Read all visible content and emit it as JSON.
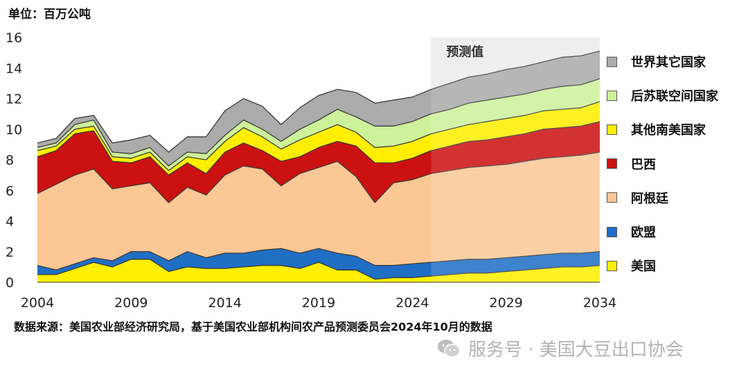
{
  "unit_label": "单位：百万公吨",
  "source_text": "数据来源：美国农业部经济研究局，基于美国农业部机构间农产品预测委员会2024年10月的数据",
  "watermark_text": "服务号 · 美国大豆出口协会",
  "forecast_label": "预测值",
  "chart_data": {
    "type": "area",
    "stacked": true,
    "title": "",
    "xlabel": "",
    "ylabel": "单位：百万公吨",
    "ylim": [
      0,
      16
    ],
    "xlim": [
      2004,
      2034
    ],
    "yticks": [
      0,
      2,
      4,
      6,
      8,
      10,
      12,
      14,
      16
    ],
    "xticks": [
      2004,
      2009,
      2014,
      2019,
      2024,
      2029,
      2034
    ],
    "forecast_start": 2025,
    "x": [
      2004,
      2005,
      2006,
      2007,
      2008,
      2009,
      2010,
      2011,
      2012,
      2013,
      2014,
      2015,
      2016,
      2017,
      2018,
      2019,
      2020,
      2021,
      2022,
      2023,
      2024,
      2025,
      2026,
      2027,
      2028,
      2029,
      2030,
      2031,
      2032,
      2033,
      2034
    ],
    "series": [
      {
        "name": "美国",
        "color": "#ffef00",
        "values": [
          0.5,
          0.5,
          0.9,
          1.3,
          1.0,
          1.5,
          1.5,
          0.7,
          1.0,
          0.9,
          0.9,
          1.0,
          1.1,
          1.1,
          0.9,
          1.3,
          0.8,
          0.8,
          0.2,
          0.3,
          0.3,
          0.4,
          0.5,
          0.6,
          0.6,
          0.7,
          0.8,
          0.9,
          1.0,
          1.0,
          1.1
        ]
      },
      {
        "name": "欧盟",
        "color": "#1f6fc5",
        "values": [
          0.6,
          0.3,
          0.3,
          0.3,
          0.4,
          0.5,
          0.5,
          0.7,
          1.0,
          0.7,
          1.0,
          0.9,
          1.0,
          1.1,
          1.0,
          0.9,
          1.1,
          0.9,
          0.9,
          0.8,
          0.9,
          0.9,
          0.9,
          0.9,
          0.9,
          0.9,
          0.9,
          0.9,
          0.9,
          0.9,
          0.9
        ]
      },
      {
        "name": "阿根廷",
        "color": "#fbc795",
        "values": [
          4.7,
          5.6,
          5.8,
          5.8,
          4.7,
          4.3,
          4.5,
          3.8,
          4.2,
          4.1,
          5.1,
          5.7,
          5.3,
          4.1,
          5.2,
          5.3,
          6.0,
          5.2,
          4.1,
          5.4,
          5.5,
          5.8,
          5.9,
          6.0,
          6.1,
          6.1,
          6.2,
          6.3,
          6.3,
          6.4,
          6.5
        ]
      },
      {
        "name": "巴西",
        "color": "#cc1111",
        "values": [
          2.4,
          2.2,
          2.7,
          2.5,
          1.8,
          1.5,
          1.7,
          1.8,
          1.6,
          1.4,
          1.5,
          1.5,
          1.2,
          1.6,
          1.1,
          1.3,
          1.3,
          2.0,
          2.6,
          1.3,
          1.4,
          1.5,
          1.6,
          1.7,
          1.7,
          1.8,
          1.8,
          1.9,
          1.9,
          1.9,
          2.0
        ]
      },
      {
        "name": "其他南美国家",
        "color": "#ffee00",
        "values": [
          0.4,
          0.3,
          0.3,
          0.3,
          0.3,
          0.3,
          0.3,
          0.3,
          0.4,
          0.9,
          0.7,
          1.0,
          0.9,
          0.8,
          1.1,
          1.0,
          1.1,
          0.9,
          1.0,
          1.1,
          1.1,
          1.1,
          1.1,
          1.1,
          1.2,
          1.2,
          1.2,
          1.2,
          1.2,
          1.2,
          1.3
        ]
      },
      {
        "name": "后苏联空间国家",
        "color": "#ccf29a",
        "values": [
          0.2,
          0.2,
          0.3,
          0.4,
          0.3,
          0.3,
          0.3,
          0.3,
          0.3,
          0.4,
          0.4,
          0.5,
          0.5,
          0.5,
          0.7,
          0.8,
          1.0,
          1.0,
          1.4,
          1.3,
          1.3,
          1.3,
          1.3,
          1.4,
          1.4,
          1.4,
          1.4,
          1.4,
          1.5,
          1.5,
          1.5
        ]
      },
      {
        "name": "世界其它国家",
        "color": "#ababab",
        "values": [
          0.3,
          0.3,
          0.4,
          0.3,
          0.6,
          0.9,
          0.8,
          0.9,
          1.0,
          1.1,
          1.6,
          1.4,
          1.5,
          1.1,
          1.4,
          1.6,
          1.3,
          1.6,
          1.5,
          1.7,
          1.6,
          1.6,
          1.7,
          1.7,
          1.7,
          1.8,
          1.8,
          1.8,
          1.9,
          1.9,
          1.8
        ]
      }
    ],
    "legend_order": [
      "世界其它国家",
      "后苏联空间国家",
      "其他南美国家",
      "巴西",
      "阿根廷",
      "欧盟",
      "美国"
    ]
  }
}
